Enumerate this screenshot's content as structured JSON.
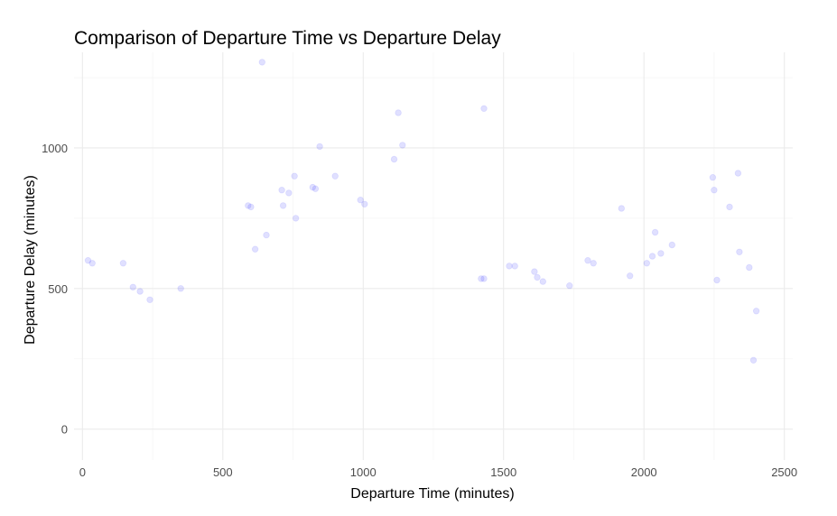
{
  "chart_data": {
    "type": "scatter",
    "title": "Comparison of Departure Time vs Departure Delay",
    "xlabel": "Departure Time (minutes)",
    "ylabel": "Departure Delay (minutes)",
    "xlim": [
      -30,
      2530
    ],
    "ylim": [
      -110,
      1340
    ],
    "xticks": [
      0,
      500,
      1000,
      1500,
      2000,
      2500
    ],
    "xtick_labels": [
      "0",
      "500",
      "1000",
      "1500",
      "2000",
      "2500"
    ],
    "yticks": [
      0,
      500,
      1000
    ],
    "ytick_labels": [
      "0",
      "500",
      "1000"
    ],
    "grid": true,
    "legend": "none",
    "point_color": "#0000ff",
    "point_alpha": 0.12,
    "series": [
      {
        "x": [
          640,
          1125,
          1430,
          1140,
          845,
          1110,
          755,
          710,
          590,
          600,
          615,
          715,
          760,
          820,
          830,
          900,
          990,
          1005,
          655,
          735,
          1920,
          2040,
          2245,
          2335,
          2100,
          2030,
          2010,
          1610,
          1430,
          1950,
          2250,
          2305,
          1800,
          1540,
          20,
          35,
          145,
          180,
          205,
          240,
          350,
          1420,
          2340,
          2260,
          2060,
          2375,
          2400,
          2390,
          1520,
          1620,
          1735,
          1640,
          1820
        ],
        "y": [
          1305,
          1125,
          1140,
          1010,
          1005,
          960,
          900,
          850,
          795,
          790,
          640,
          795,
          750,
          860,
          855,
          900,
          815,
          800,
          690,
          840,
          785,
          700,
          895,
          910,
          655,
          615,
          590,
          560,
          535,
          545,
          850,
          790,
          600,
          580,
          600,
          590,
          590,
          505,
          490,
          460,
          500,
          535,
          630,
          530,
          625,
          575,
          420,
          245,
          580,
          540,
          510,
          525,
          590
        ]
      }
    ]
  }
}
